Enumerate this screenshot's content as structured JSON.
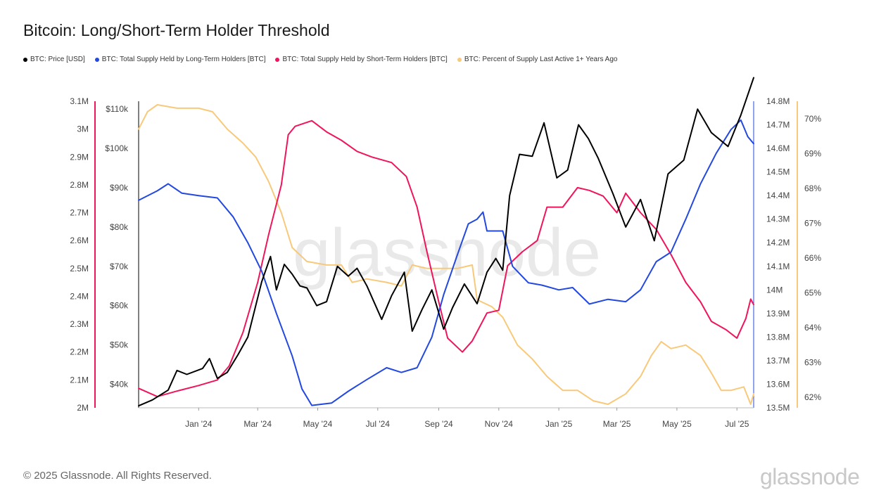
{
  "title": "Bitcoin: Long/Short-Term Holder Threshold",
  "copyright": "© 2025 Glassnode. All Rights Reserved.",
  "brand": "glassnode",
  "watermark": "glassnode",
  "colors": {
    "price": "#000000",
    "lth": "#2348e0",
    "sth": "#f0155a",
    "percent": "#f8c97a"
  },
  "chart_data": {
    "type": "line",
    "x_tick_labels": [
      "Jan '24",
      "Mar '24",
      "May '24",
      "Jul '24",
      "Sep '24",
      "Nov '24",
      "Jan '25",
      "Mar '25",
      "May '25",
      "Jul '25"
    ],
    "x_range": [
      "2023-11-01",
      "2025-07-18"
    ],
    "axes": {
      "supply_left": {
        "ticks": [
          "3.1M",
          "3M",
          "2.9M",
          "2.8M",
          "2.7M",
          "2.6M",
          "2.5M",
          "2.4M",
          "2.3M",
          "2.2M",
          "2.1M",
          "2M"
        ],
        "range": [
          2000000,
          3100000
        ]
      },
      "price": {
        "ticks": [
          "$110k",
          "$100k",
          "$90k",
          "$80k",
          "$70k",
          "$60k",
          "$50k",
          "$40k"
        ],
        "range": [
          34000,
          112000
        ]
      },
      "supply_right": {
        "ticks": [
          "14.8M",
          "14.7M",
          "14.6M",
          "14.5M",
          "14.4M",
          "14.3M",
          "14.2M",
          "14.1M",
          "14M",
          "13.9M",
          "13.8M",
          "13.7M",
          "13.6M",
          "13.5M"
        ],
        "range": [
          13500000,
          14800000
        ]
      },
      "percent": {
        "ticks": [
          "70%",
          "69%",
          "68%",
          "67%",
          "66%",
          "65%",
          "64%",
          "63%",
          "62%"
        ],
        "range": [
          61.7,
          70.5
        ]
      }
    },
    "series": [
      {
        "name": "BTC: Price [USD]",
        "axis": "price",
        "points": [
          [
            "2023-11-01",
            34500
          ],
          [
            "2023-11-15",
            36000
          ],
          [
            "2023-12-01",
            38500
          ],
          [
            "2023-12-10",
            43500
          ],
          [
            "2023-12-20",
            42500
          ],
          [
            "2024-01-05",
            44000
          ],
          [
            "2024-01-12",
            46500
          ],
          [
            "2024-01-20",
            41500
          ],
          [
            "2024-01-30",
            43000
          ],
          [
            "2024-02-10",
            47500
          ],
          [
            "2024-02-20",
            52000
          ],
          [
            "2024-02-28",
            60000
          ],
          [
            "2024-03-05",
            66000
          ],
          [
            "2024-03-14",
            72500
          ],
          [
            "2024-03-20",
            64000
          ],
          [
            "2024-03-28",
            70500
          ],
          [
            "2024-04-05",
            68000
          ],
          [
            "2024-04-13",
            65000
          ],
          [
            "2024-04-20",
            64500
          ],
          [
            "2024-04-30",
            60000
          ],
          [
            "2024-05-10",
            61000
          ],
          [
            "2024-05-21",
            70000
          ],
          [
            "2024-06-01",
            67500
          ],
          [
            "2024-06-10",
            69500
          ],
          [
            "2024-06-20",
            65000
          ],
          [
            "2024-07-05",
            56500
          ],
          [
            "2024-07-15",
            62500
          ],
          [
            "2024-07-28",
            68500
          ],
          [
            "2024-08-05",
            53500
          ],
          [
            "2024-08-15",
            59000
          ],
          [
            "2024-08-25",
            64000
          ],
          [
            "2024-09-06",
            54000
          ],
          [
            "2024-09-15",
            59500
          ],
          [
            "2024-09-27",
            65500
          ],
          [
            "2024-10-10",
            60500
          ],
          [
            "2024-10-20",
            68500
          ],
          [
            "2024-10-29",
            72000
          ],
          [
            "2024-11-05",
            69000
          ],
          [
            "2024-11-12",
            88000
          ],
          [
            "2024-11-22",
            98500
          ],
          [
            "2024-12-05",
            98000
          ],
          [
            "2024-12-17",
            106500
          ],
          [
            "2024-12-30",
            92500
          ],
          [
            "2025-01-10",
            94500
          ],
          [
            "2025-01-21",
            106000
          ],
          [
            "2025-01-31",
            102500
          ],
          [
            "2025-02-10",
            97500
          ],
          [
            "2025-02-25",
            88500
          ],
          [
            "2025-03-10",
            80000
          ],
          [
            "2025-03-25",
            87000
          ],
          [
            "2025-04-08",
            76500
          ],
          [
            "2025-04-22",
            93500
          ],
          [
            "2025-05-08",
            97000
          ],
          [
            "2025-05-22",
            110000
          ],
          [
            "2025-06-05",
            104000
          ],
          [
            "2025-06-22",
            100500
          ],
          [
            "2025-07-05",
            108500
          ],
          [
            "2025-07-18",
            118000
          ]
        ]
      },
      {
        "name": "BTC: Total Supply Held by Long-Term Holders [BTC]",
        "axis": "supply_right",
        "points": [
          [
            "2023-11-01",
            14380000
          ],
          [
            "2023-11-20",
            14420000
          ],
          [
            "2023-12-01",
            14450000
          ],
          [
            "2023-12-15",
            14410000
          ],
          [
            "2024-01-01",
            14400000
          ],
          [
            "2024-01-20",
            14390000
          ],
          [
            "2024-02-05",
            14310000
          ],
          [
            "2024-02-20",
            14200000
          ],
          [
            "2024-03-05",
            14080000
          ],
          [
            "2024-03-20",
            13900000
          ],
          [
            "2024-04-05",
            13720000
          ],
          [
            "2024-04-15",
            13580000
          ],
          [
            "2024-04-25",
            13510000
          ],
          [
            "2024-05-15",
            13520000
          ],
          [
            "2024-06-01",
            13570000
          ],
          [
            "2024-06-20",
            13620000
          ],
          [
            "2024-07-10",
            13670000
          ],
          [
            "2024-07-25",
            13650000
          ],
          [
            "2024-08-10",
            13670000
          ],
          [
            "2024-08-25",
            13800000
          ],
          [
            "2024-09-06",
            13980000
          ],
          [
            "2024-09-20",
            14150000
          ],
          [
            "2024-10-01",
            14280000
          ],
          [
            "2024-10-10",
            14300000
          ],
          [
            "2024-10-16",
            14330000
          ],
          [
            "2024-10-20",
            14250000
          ],
          [
            "2024-11-05",
            14250000
          ],
          [
            "2024-11-15",
            14100000
          ],
          [
            "2024-12-01",
            14030000
          ],
          [
            "2024-12-15",
            14020000
          ],
          [
            "2025-01-01",
            14000000
          ],
          [
            "2025-01-15",
            14010000
          ],
          [
            "2025-02-01",
            13940000
          ],
          [
            "2025-02-20",
            13960000
          ],
          [
            "2025-03-10",
            13950000
          ],
          [
            "2025-03-25",
            14000000
          ],
          [
            "2025-04-10",
            14120000
          ],
          [
            "2025-04-25",
            14160000
          ],
          [
            "2025-05-10",
            14300000
          ],
          [
            "2025-05-25",
            14450000
          ],
          [
            "2025-06-10",
            14580000
          ],
          [
            "2025-06-25",
            14680000
          ],
          [
            "2025-07-05",
            14720000
          ],
          [
            "2025-07-12",
            14650000
          ],
          [
            "2025-07-18",
            14620000
          ]
        ]
      },
      {
        "name": "BTC: Total Supply Held by Short-Term Holders [BTC]",
        "axis": "supply_left",
        "points": [
          [
            "2023-11-01",
            2070000
          ],
          [
            "2023-11-20",
            2040000
          ],
          [
            "2023-12-10",
            2060000
          ],
          [
            "2024-01-01",
            2080000
          ],
          [
            "2024-01-20",
            2100000
          ],
          [
            "2024-02-01",
            2150000
          ],
          [
            "2024-02-15",
            2270000
          ],
          [
            "2024-03-01",
            2450000
          ],
          [
            "2024-03-12",
            2620000
          ],
          [
            "2024-03-25",
            2800000
          ],
          [
            "2024-04-01",
            2980000
          ],
          [
            "2024-04-08",
            3010000
          ],
          [
            "2024-04-25",
            3030000
          ],
          [
            "2024-05-10",
            2990000
          ],
          [
            "2024-05-25",
            2960000
          ],
          [
            "2024-06-10",
            2920000
          ],
          [
            "2024-06-25",
            2900000
          ],
          [
            "2024-07-15",
            2880000
          ],
          [
            "2024-07-30",
            2830000
          ],
          [
            "2024-08-10",
            2720000
          ],
          [
            "2024-08-20",
            2560000
          ],
          [
            "2024-09-01",
            2380000
          ],
          [
            "2024-09-10",
            2250000
          ],
          [
            "2024-09-25",
            2200000
          ],
          [
            "2024-10-05",
            2240000
          ],
          [
            "2024-10-20",
            2340000
          ],
          [
            "2024-11-01",
            2350000
          ],
          [
            "2024-11-10",
            2510000
          ],
          [
            "2024-11-25",
            2560000
          ],
          [
            "2024-12-10",
            2600000
          ],
          [
            "2024-12-20",
            2720000
          ],
          [
            "2025-01-05",
            2720000
          ],
          [
            "2025-01-20",
            2790000
          ],
          [
            "2025-02-01",
            2780000
          ],
          [
            "2025-02-15",
            2760000
          ],
          [
            "2025-03-01",
            2700000
          ],
          [
            "2025-03-10",
            2770000
          ],
          [
            "2025-03-25",
            2700000
          ],
          [
            "2025-04-10",
            2640000
          ],
          [
            "2025-04-25",
            2550000
          ],
          [
            "2025-05-10",
            2450000
          ],
          [
            "2025-05-25",
            2380000
          ],
          [
            "2025-06-05",
            2310000
          ],
          [
            "2025-06-20",
            2280000
          ],
          [
            "2025-07-01",
            2250000
          ],
          [
            "2025-07-10",
            2320000
          ],
          [
            "2025-07-15",
            2390000
          ],
          [
            "2025-07-18",
            2370000
          ]
        ]
      },
      {
        "name": "BTC: Percent of Supply Last Active 1+ Years Ago",
        "axis": "percent",
        "points": [
          [
            "2023-11-01",
            69.7
          ],
          [
            "2023-11-10",
            70.2
          ],
          [
            "2023-11-20",
            70.4
          ],
          [
            "2023-12-10",
            70.3
          ],
          [
            "2024-01-01",
            70.3
          ],
          [
            "2024-01-15",
            70.2
          ],
          [
            "2024-01-30",
            69.7
          ],
          [
            "2024-02-15",
            69.3
          ],
          [
            "2024-02-28",
            68.9
          ],
          [
            "2024-03-12",
            68.2
          ],
          [
            "2024-03-25",
            67.3
          ],
          [
            "2024-04-05",
            66.3
          ],
          [
            "2024-04-20",
            65.9
          ],
          [
            "2024-05-10",
            65.8
          ],
          [
            "2024-05-25",
            65.8
          ],
          [
            "2024-06-05",
            65.3
          ],
          [
            "2024-06-20",
            65.4
          ],
          [
            "2024-07-10",
            65.3
          ],
          [
            "2024-07-25",
            65.2
          ],
          [
            "2024-08-05",
            65.8
          ],
          [
            "2024-08-20",
            65.7
          ],
          [
            "2024-09-05",
            65.7
          ],
          [
            "2024-09-20",
            65.7
          ],
          [
            "2024-10-05",
            65.8
          ],
          [
            "2024-10-10",
            64.8
          ],
          [
            "2024-10-25",
            64.6
          ],
          [
            "2024-11-05",
            64.3
          ],
          [
            "2024-11-20",
            63.5
          ],
          [
            "2024-12-05",
            63.1
          ],
          [
            "2024-12-20",
            62.6
          ],
          [
            "2025-01-05",
            62.2
          ],
          [
            "2025-01-20",
            62.2
          ],
          [
            "2025-02-05",
            61.9
          ],
          [
            "2025-02-20",
            61.8
          ],
          [
            "2025-03-10",
            62.1
          ],
          [
            "2025-03-25",
            62.6
          ],
          [
            "2025-04-05",
            63.2
          ],
          [
            "2025-04-15",
            63.6
          ],
          [
            "2025-04-25",
            63.4
          ],
          [
            "2025-05-10",
            63.5
          ],
          [
            "2025-05-25",
            63.2
          ],
          [
            "2025-06-05",
            62.7
          ],
          [
            "2025-06-15",
            62.2
          ],
          [
            "2025-06-25",
            62.2
          ],
          [
            "2025-07-08",
            62.3
          ],
          [
            "2025-07-15",
            61.8
          ],
          [
            "2025-07-18",
            62.1
          ]
        ]
      }
    ]
  }
}
